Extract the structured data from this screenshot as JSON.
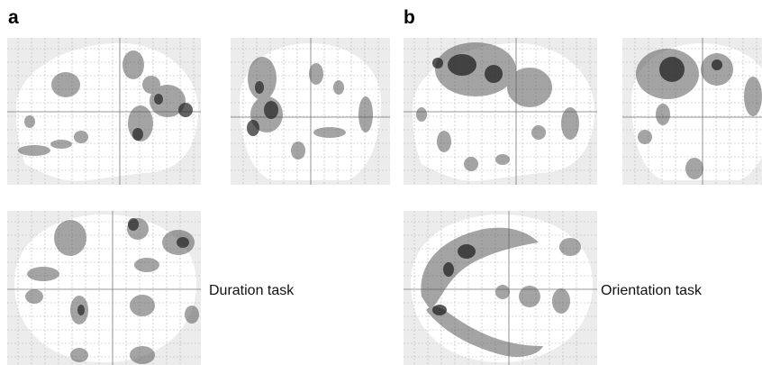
{
  "panels": {
    "a": {
      "letter": "a",
      "task_label": "Duration task"
    },
    "b": {
      "letter": "b",
      "task_label": "Orientation task"
    }
  },
  "colors": {
    "background": "#ffffff",
    "outside_brain": "#ececec",
    "grid": "#b5b5b5",
    "activation_dark": "#1a1a1a"
  },
  "views": {
    "a": {
      "sagittal": "glass-brain-sagittal",
      "coronal": "glass-brain-coronal",
      "axial": "glass-brain-axial"
    },
    "b": {
      "sagittal": "glass-brain-sagittal",
      "coronal": "glass-brain-coronal",
      "axial": "glass-brain-axial"
    }
  }
}
